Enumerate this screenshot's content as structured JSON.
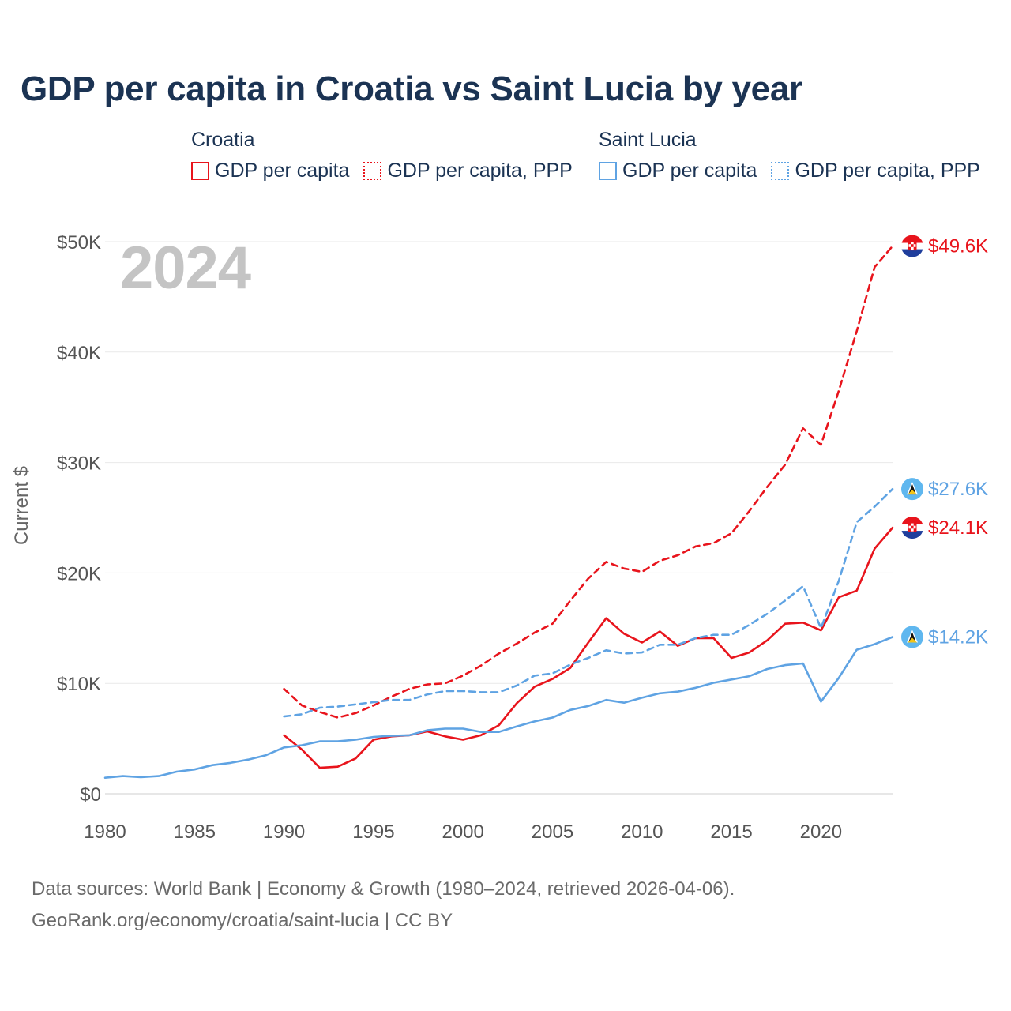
{
  "chart_data": {
    "type": "line",
    "title": "GDP per capita in Croatia vs Saint Lucia by year",
    "ylabel": "Current $",
    "xlabel": "",
    "year_label": "2024",
    "xlim": [
      1980,
      2024
    ],
    "ylim": [
      0,
      50000
    ],
    "x_ticks": [
      1980,
      1985,
      1990,
      1995,
      2000,
      2005,
      2010,
      2015,
      2020
    ],
    "x_tick_labels": [
      "1980",
      "1985",
      "1990",
      "1995",
      "2000",
      "2005",
      "2010",
      "2015",
      "2020"
    ],
    "y_ticks": [
      0,
      10000,
      20000,
      30000,
      40000,
      50000
    ],
    "y_tick_labels": [
      "$0",
      "$10K",
      "$20K",
      "$30K",
      "$40K",
      "$50K"
    ],
    "grid": true,
    "legend": {
      "position": "top",
      "groups": [
        {
          "name": "Croatia",
          "items": [
            "GDP per capita",
            "GDP per capita, PPP"
          ]
        },
        {
          "name": "Saint Lucia",
          "items": [
            "GDP per capita",
            "GDP per capita, PPP"
          ]
        }
      ]
    },
    "series": [
      {
        "name": "Croatia GDP per capita",
        "country": "Croatia",
        "color": "#e8141c",
        "style": "solid",
        "end_label": "$24.1K",
        "x": [
          1990,
          1991,
          1992,
          1993,
          1994,
          1995,
          1996,
          1997,
          1998,
          1999,
          2000,
          2001,
          2002,
          2003,
          2004,
          2005,
          2006,
          2007,
          2008,
          2009,
          2010,
          2011,
          2012,
          2013,
          2014,
          2015,
          2016,
          2017,
          2018,
          2019,
          2020,
          2021,
          2022,
          2023,
          2024
        ],
        "values": [
          5300,
          4000,
          2350,
          2450,
          3200,
          4900,
          5200,
          5300,
          5650,
          5200,
          4900,
          5300,
          6200,
          8200,
          9700,
          10400,
          11400,
          13700,
          15900,
          14500,
          13700,
          14700,
          13400,
          14100,
          14100,
          12300,
          12800,
          13900,
          15400,
          15500,
          14800,
          17800,
          18400,
          22200,
          24100
        ]
      },
      {
        "name": "Croatia GDP per capita, PPP",
        "country": "Croatia",
        "color": "#e8141c",
        "style": "dashed",
        "end_label": "$49.6K",
        "x": [
          1990,
          1991,
          1992,
          1993,
          1994,
          1995,
          1996,
          1997,
          1998,
          1999,
          2000,
          2001,
          2002,
          2003,
          2004,
          2005,
          2006,
          2007,
          2008,
          2009,
          2010,
          2011,
          2012,
          2013,
          2014,
          2015,
          2016,
          2017,
          2018,
          2019,
          2020,
          2021,
          2022,
          2023,
          2024
        ],
        "values": [
          9500,
          8000,
          7400,
          6900,
          7300,
          8000,
          8800,
          9500,
          9900,
          10000,
          10700,
          11600,
          12700,
          13600,
          14600,
          15400,
          17500,
          19500,
          21000,
          20400,
          20100,
          21100,
          21600,
          22400,
          22700,
          23600,
          25600,
          27800,
          29800,
          33100,
          31600,
          36500,
          41900,
          47700,
          49600
        ]
      },
      {
        "name": "Saint Lucia GDP per capita",
        "country": "Saint Lucia",
        "color": "#5fa3e3",
        "style": "solid",
        "end_label": "$14.2K",
        "x": [
          1980,
          1981,
          1982,
          1983,
          1984,
          1985,
          1986,
          1987,
          1988,
          1989,
          1990,
          1991,
          1992,
          1993,
          1994,
          1995,
          1996,
          1997,
          1998,
          1999,
          2000,
          2001,
          2002,
          2003,
          2004,
          2005,
          2006,
          2007,
          2008,
          2009,
          2010,
          2011,
          2012,
          2013,
          2014,
          2015,
          2016,
          2017,
          2018,
          2019,
          2020,
          2021,
          2022,
          2023,
          2024
        ],
        "values": [
          1450,
          1600,
          1500,
          1600,
          2000,
          2200,
          2600,
          2800,
          3100,
          3500,
          4200,
          4400,
          4750,
          4750,
          4900,
          5150,
          5250,
          5300,
          5750,
          5900,
          5900,
          5600,
          5600,
          6100,
          6550,
          6900,
          7600,
          7950,
          8500,
          8250,
          8700,
          9100,
          9250,
          9600,
          10050,
          10350,
          10650,
          11300,
          11650,
          11800,
          8350,
          10500,
          13050,
          13550,
          14200
        ]
      },
      {
        "name": "Saint Lucia GDP per capita, PPP",
        "country": "Saint Lucia",
        "color": "#5fa3e3",
        "style": "dashed",
        "end_label": "$27.6K",
        "x": [
          1990,
          1991,
          1992,
          1993,
          1994,
          1995,
          1996,
          1997,
          1998,
          1999,
          2000,
          2001,
          2002,
          2003,
          2004,
          2005,
          2006,
          2007,
          2008,
          2009,
          2010,
          2011,
          2012,
          2013,
          2014,
          2015,
          2016,
          2017,
          2018,
          2019,
          2020,
          2021,
          2022,
          2023,
          2024
        ],
        "values": [
          7000,
          7200,
          7800,
          7900,
          8100,
          8300,
          8500,
          8500,
          9000,
          9300,
          9300,
          9200,
          9200,
          9800,
          10700,
          10900,
          11700,
          12300,
          13000,
          12700,
          12800,
          13500,
          13500,
          14100,
          14400,
          14400,
          15300,
          16300,
          17500,
          18800,
          15000,
          19300,
          24600,
          26000,
          27600
        ]
      }
    ]
  },
  "footer": {
    "line1": "Data sources: World Bank | Economy & Growth (1980–2024, retrieved 2026-04-06).",
    "line2": "GeoRank.org/economy/croatia/saint-lucia | CC BY"
  }
}
